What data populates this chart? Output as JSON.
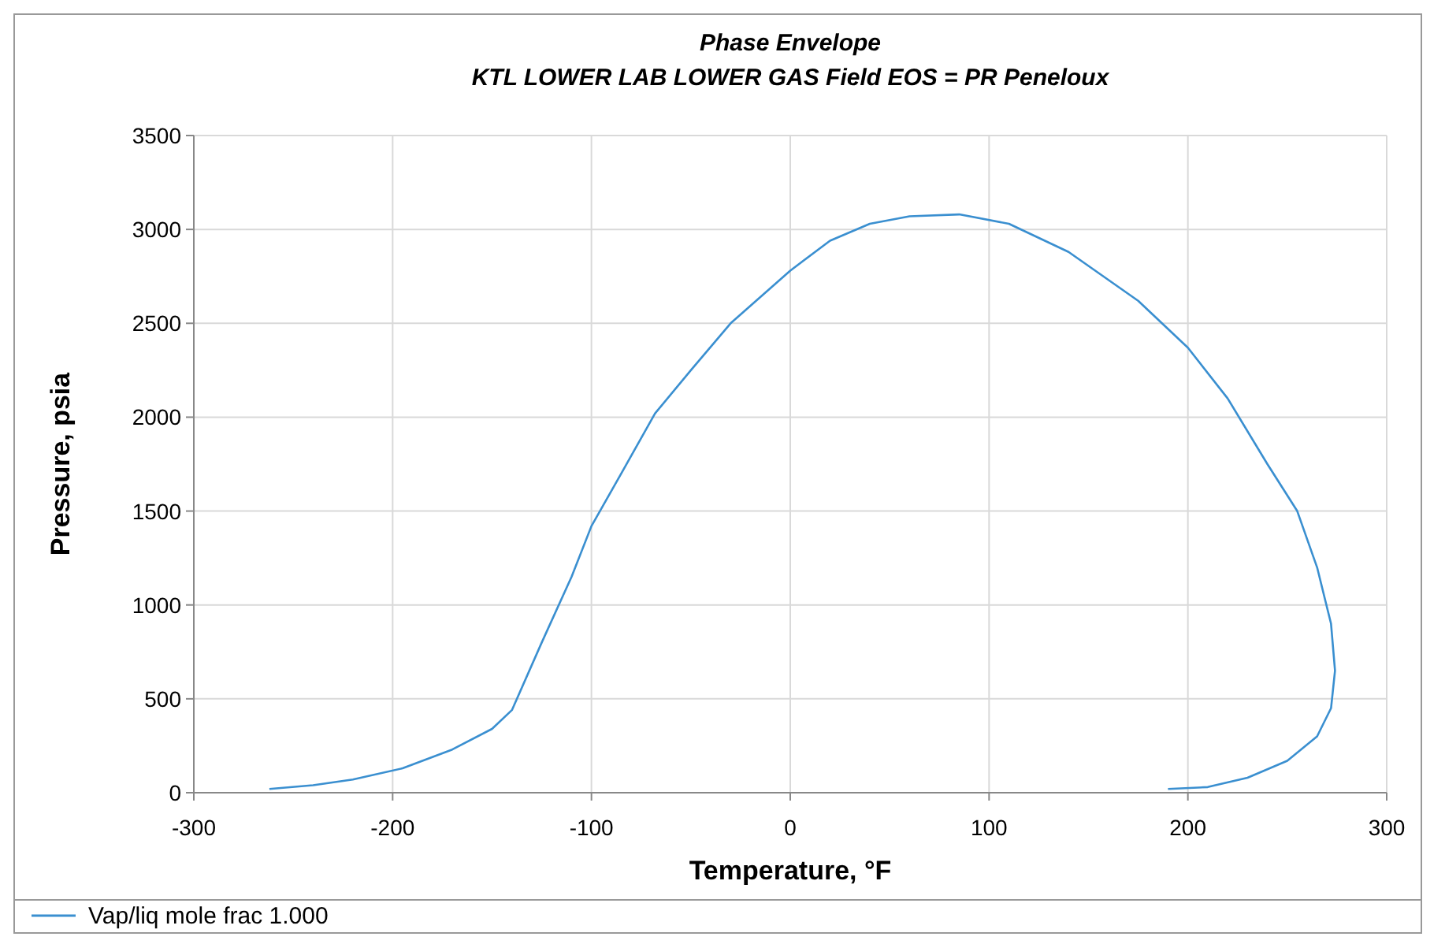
{
  "chart_data": {
    "type": "line",
    "title": "Phase Envelope",
    "subtitle": "KTL LOWER LAB LOWER GAS Field EOS = PR Peneloux",
    "xlabel": "Temperature, °F",
    "ylabel": "Pressure, psia",
    "xlim": [
      -300,
      300
    ],
    "ylim": [
      0,
      3500
    ],
    "xticks": [
      -300,
      -200,
      -100,
      0,
      100,
      200,
      300
    ],
    "yticks": [
      0,
      500,
      1000,
      1500,
      2000,
      2500,
      3000,
      3500
    ],
    "grid": true,
    "legend": "bottom left",
    "marker": "none",
    "line_style": "solid",
    "series": [
      {
        "name": "Vap/liq mole frac 1.000",
        "color": "#3a8fd0",
        "x": [
          -262,
          -240,
          -220,
          -195,
          -170,
          -150,
          -140,
          -125,
          -110,
          -100,
          -85,
          -68,
          -50,
          -30,
          0,
          20,
          40,
          60,
          85,
          110,
          140,
          175,
          200,
          220,
          240,
          255,
          265,
          272,
          274,
          272,
          265,
          250,
          230,
          210,
          190
        ],
        "values": [
          20,
          40,
          70,
          130,
          230,
          340,
          440,
          800,
          1150,
          1420,
          1700,
          2020,
          2250,
          2500,
          2780,
          2940,
          3030,
          3070,
          3080,
          3030,
          2880,
          2620,
          2370,
          2100,
          1750,
          1500,
          1200,
          900,
          650,
          450,
          300,
          170,
          80,
          30,
          20
        ]
      }
    ]
  }
}
